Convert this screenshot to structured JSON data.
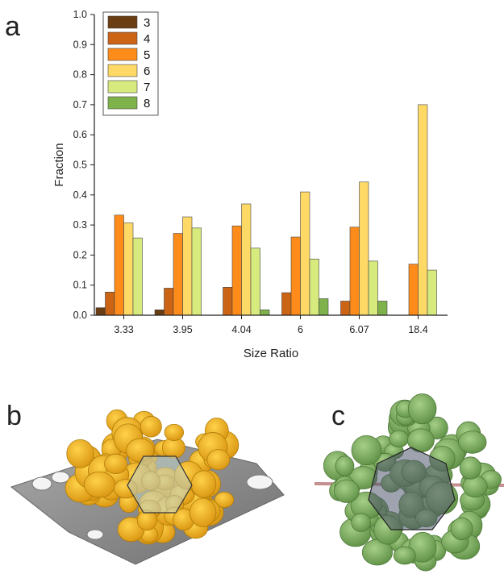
{
  "panel_labels": {
    "a": "a",
    "b": "b",
    "c": "c"
  },
  "colors": {
    "3": "#6b3d12",
    "4": "#cc6416",
    "5": "#ff8c1a",
    "6": "#ffd966",
    "7": "#d6ea7e",
    "8": "#7fb24a",
    "panel_b_surface": "#f2b31c",
    "panel_c_surface": "#86b46a",
    "slice_gray": "#8d8d8d"
  },
  "chart_data": {
    "type": "bar",
    "xlabel": "Size Ratio",
    "ylabel": "Fraction",
    "ylim": [
      0,
      1.0
    ],
    "yticks": [
      "0.0",
      "0.1",
      "0.2",
      "0.3",
      "0.4",
      "0.5",
      "0.6",
      "0.7",
      "0.8",
      "0.9",
      "1.0"
    ],
    "categories": [
      "3.33",
      "3.95",
      "4.04",
      "6",
      "6.07",
      "18.4"
    ],
    "legend_position": "top-left",
    "grid": false,
    "series": [
      {
        "name": "3",
        "values": [
          0.025,
          0.018,
          0,
          0,
          0,
          0
        ]
      },
      {
        "name": "4",
        "values": [
          0.077,
          0.09,
          0.093,
          0.075,
          0.047,
          0
        ]
      },
      {
        "name": "5",
        "values": [
          0.333,
          0.272,
          0.297,
          0.26,
          0.293,
          0.17
        ]
      },
      {
        "name": "6",
        "values": [
          0.307,
          0.327,
          0.37,
          0.41,
          0.443,
          0.7
        ]
      },
      {
        "name": "7",
        "values": [
          0.257,
          0.29,
          0.223,
          0.187,
          0.18,
          0.15
        ]
      },
      {
        "name": "8",
        "values": [
          0,
          0,
          0.018,
          0.055,
          0.047,
          0
        ]
      }
    ]
  }
}
